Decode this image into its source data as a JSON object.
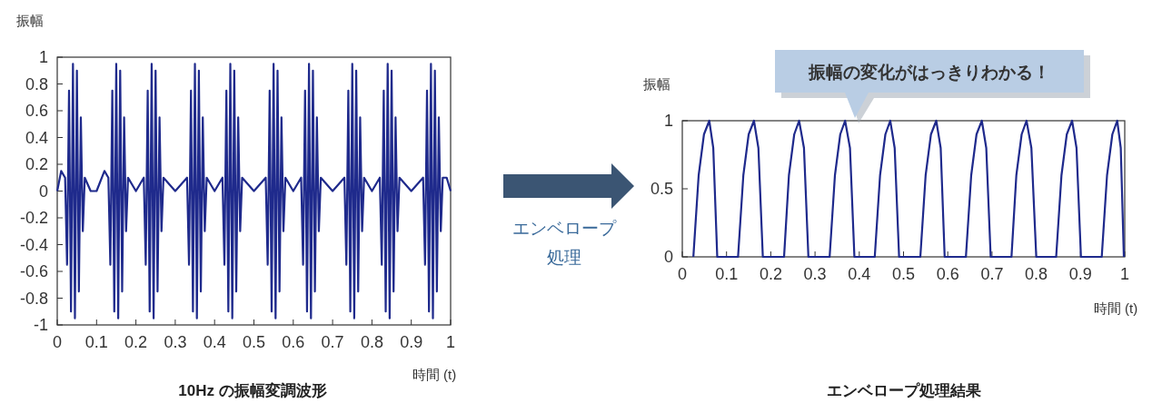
{
  "chart_data": [
    {
      "type": "line",
      "title": "10Hz の振幅変調波形",
      "xlabel": "時間 (t)",
      "ylabel": "振幅",
      "xlim": [
        0,
        1
      ],
      "ylim": [
        -1,
        1
      ],
      "xticks": [
        0,
        0.1,
        0.2,
        0.3,
        0.4,
        0.5,
        0.6,
        0.7,
        0.8,
        0.9,
        1
      ],
      "yticks": [
        -1,
        -0.8,
        -0.6,
        -0.4,
        -0.2,
        0,
        0.2,
        0.4,
        0.6,
        0.8,
        1
      ],
      "series": [
        {
          "color": "#1f2a8c",
          "x": [
            0,
            0.01,
            0.02,
            0.025,
            0.03,
            0.035,
            0.04,
            0.045,
            0.05,
            0.055,
            0.06,
            0.065,
            0.07,
            0.085,
            0.1,
            0.12,
            0.13,
            0.135,
            0.14,
            0.145,
            0.15,
            0.155,
            0.16,
            0.165,
            0.17,
            0.175,
            0.18,
            0.2,
            0.22,
            0.225,
            0.23,
            0.235,
            0.24,
            0.245,
            0.25,
            0.255,
            0.26,
            0.265,
            0.27,
            0.3,
            0.33,
            0.335,
            0.34,
            0.345,
            0.35,
            0.355,
            0.36,
            0.365,
            0.37,
            0.375,
            0.38,
            0.4,
            0.42,
            0.425,
            0.43,
            0.435,
            0.44,
            0.445,
            0.45,
            0.455,
            0.46,
            0.465,
            0.47,
            0.5,
            0.53,
            0.535,
            0.54,
            0.545,
            0.55,
            0.555,
            0.56,
            0.565,
            0.57,
            0.575,
            0.58,
            0.6,
            0.62,
            0.625,
            0.63,
            0.635,
            0.64,
            0.645,
            0.65,
            0.655,
            0.66,
            0.665,
            0.67,
            0.7,
            0.73,
            0.735,
            0.74,
            0.745,
            0.75,
            0.755,
            0.76,
            0.765,
            0.77,
            0.775,
            0.78,
            0.8,
            0.82,
            0.825,
            0.83,
            0.835,
            0.84,
            0.845,
            0.85,
            0.855,
            0.86,
            0.865,
            0.87,
            0.9,
            0.93,
            0.935,
            0.94,
            0.945,
            0.95,
            0.955,
            0.96,
            0.965,
            0.97,
            0.975,
            0.98,
            0.99,
            1
          ],
          "values": [
            0,
            0.15,
            0.1,
            -0.55,
            0.75,
            -0.9,
            0.95,
            -0.95,
            0.9,
            -0.75,
            0.55,
            -0.3,
            0.1,
            0,
            0,
            0.15,
            0.1,
            -0.55,
            0.75,
            -0.9,
            0.95,
            -0.95,
            0.9,
            -0.75,
            0.55,
            -0.3,
            0.1,
            0,
            0.1,
            -0.55,
            0.75,
            -0.9,
            0.95,
            -0.95,
            0.9,
            -0.75,
            0.55,
            -0.3,
            0.1,
            0,
            0.1,
            -0.55,
            0.75,
            -0.9,
            0.95,
            -0.95,
            0.9,
            -0.75,
            0.55,
            -0.3,
            0.1,
            0,
            0.1,
            -0.55,
            0.75,
            -0.9,
            0.95,
            -0.95,
            0.9,
            -0.75,
            0.55,
            -0.3,
            0.1,
            0,
            0.1,
            -0.55,
            0.75,
            -0.9,
            0.95,
            -0.95,
            0.9,
            -0.75,
            0.55,
            -0.3,
            0.1,
            0,
            0.1,
            -0.55,
            0.75,
            -0.9,
            0.95,
            -0.95,
            0.9,
            -0.75,
            0.55,
            -0.3,
            0.1,
            0,
            0.1,
            -0.55,
            0.75,
            -0.9,
            0.95,
            -0.95,
            0.9,
            -0.75,
            0.55,
            -0.3,
            0.1,
            0,
            0.1,
            -0.55,
            0.75,
            -0.9,
            0.95,
            -0.95,
            0.9,
            -0.75,
            0.55,
            -0.3,
            0.1,
            0,
            0.1,
            -0.55,
            0.75,
            -0.9,
            0.95,
            -0.95,
            0.9,
            -0.75,
            0.55,
            -0.3,
            0.1,
            0.1,
            0
          ]
        }
      ]
    },
    {
      "type": "line",
      "title": "エンベロープ処理結果",
      "xlabel": "時間 (t)",
      "ylabel": "振幅",
      "xlim": [
        0,
        1
      ],
      "ylim": [
        0,
        1
      ],
      "xticks": [
        0,
        0.1,
        0.2,
        0.3,
        0.4,
        0.5,
        0.6,
        0.7,
        0.8,
        0.9,
        1
      ],
      "yticks": [
        0,
        0.5,
        1
      ],
      "annotations": [
        "振幅の変化がはっきりわかる！",
        "エンベロープ",
        "処理"
      ],
      "series": [
        {
          "color": "#1f2a8c",
          "x": [
            0.025,
            0.037,
            0.049,
            0.061,
            0.07,
            0.079,
            0.126,
            0.138,
            0.15,
            0.162,
            0.172,
            0.182,
            0.23,
            0.241,
            0.253,
            0.264,
            0.275,
            0.285,
            0.333,
            0.345,
            0.357,
            0.368,
            0.379,
            0.389,
            0.435,
            0.447,
            0.459,
            0.47,
            0.48,
            0.49,
            0.538,
            0.55,
            0.562,
            0.574,
            0.584,
            0.593,
            0.641,
            0.653,
            0.665,
            0.677,
            0.687,
            0.697,
            0.744,
            0.755,
            0.767,
            0.778,
            0.789,
            0.8,
            0.845,
            0.857,
            0.869,
            0.881,
            0.891,
            0.901,
            0.948,
            0.96,
            0.972,
            0.983,
            0.991,
            0.998
          ],
          "values": [
            0,
            0.6,
            0.9,
            1,
            0.8,
            0,
            0,
            0.6,
            0.9,
            1,
            0.8,
            0,
            0,
            0.6,
            0.9,
            1,
            0.8,
            0,
            0,
            0.6,
            0.9,
            1,
            0.8,
            0,
            0,
            0.6,
            0.9,
            1,
            0.8,
            0,
            0,
            0.6,
            0.9,
            1,
            0.8,
            0,
            0,
            0.6,
            0.9,
            1,
            0.8,
            0,
            0,
            0.6,
            0.9,
            1,
            0.8,
            0,
            0,
            0.6,
            0.9,
            1,
            0.8,
            0,
            0,
            0.6,
            0.9,
            1,
            0.8,
            0
          ]
        }
      ]
    }
  ]
}
